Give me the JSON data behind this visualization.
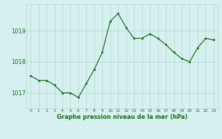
{
  "x": [
    0,
    1,
    2,
    3,
    4,
    5,
    6,
    7,
    8,
    9,
    10,
    11,
    12,
    13,
    14,
    15,
    16,
    17,
    18,
    19,
    20,
    21,
    22,
    23
  ],
  "y": [
    1017.55,
    1017.4,
    1017.4,
    1017.25,
    1017.0,
    1017.0,
    1016.85,
    1017.3,
    1017.75,
    1018.3,
    1019.3,
    1019.55,
    1019.1,
    1018.75,
    1018.75,
    1018.9,
    1018.75,
    1018.55,
    1018.3,
    1018.1,
    1018.0,
    1018.45,
    1018.75,
    1018.7
  ],
  "line_color": "#1a6b1a",
  "marker_color": "#1a6b1a",
  "bg_color": "#d6f0f0",
  "grid_color": "#b0d4d4",
  "axis_label_color": "#1a6b1a",
  "tick_label_color": "#1a6b1a",
  "xlabel": "Graphe pression niveau de la mer (hPa)",
  "yticks": [
    1017,
    1018,
    1019
  ],
  "ylim": [
    1016.5,
    1019.85
  ],
  "xlim": [
    -0.5,
    23.5
  ]
}
